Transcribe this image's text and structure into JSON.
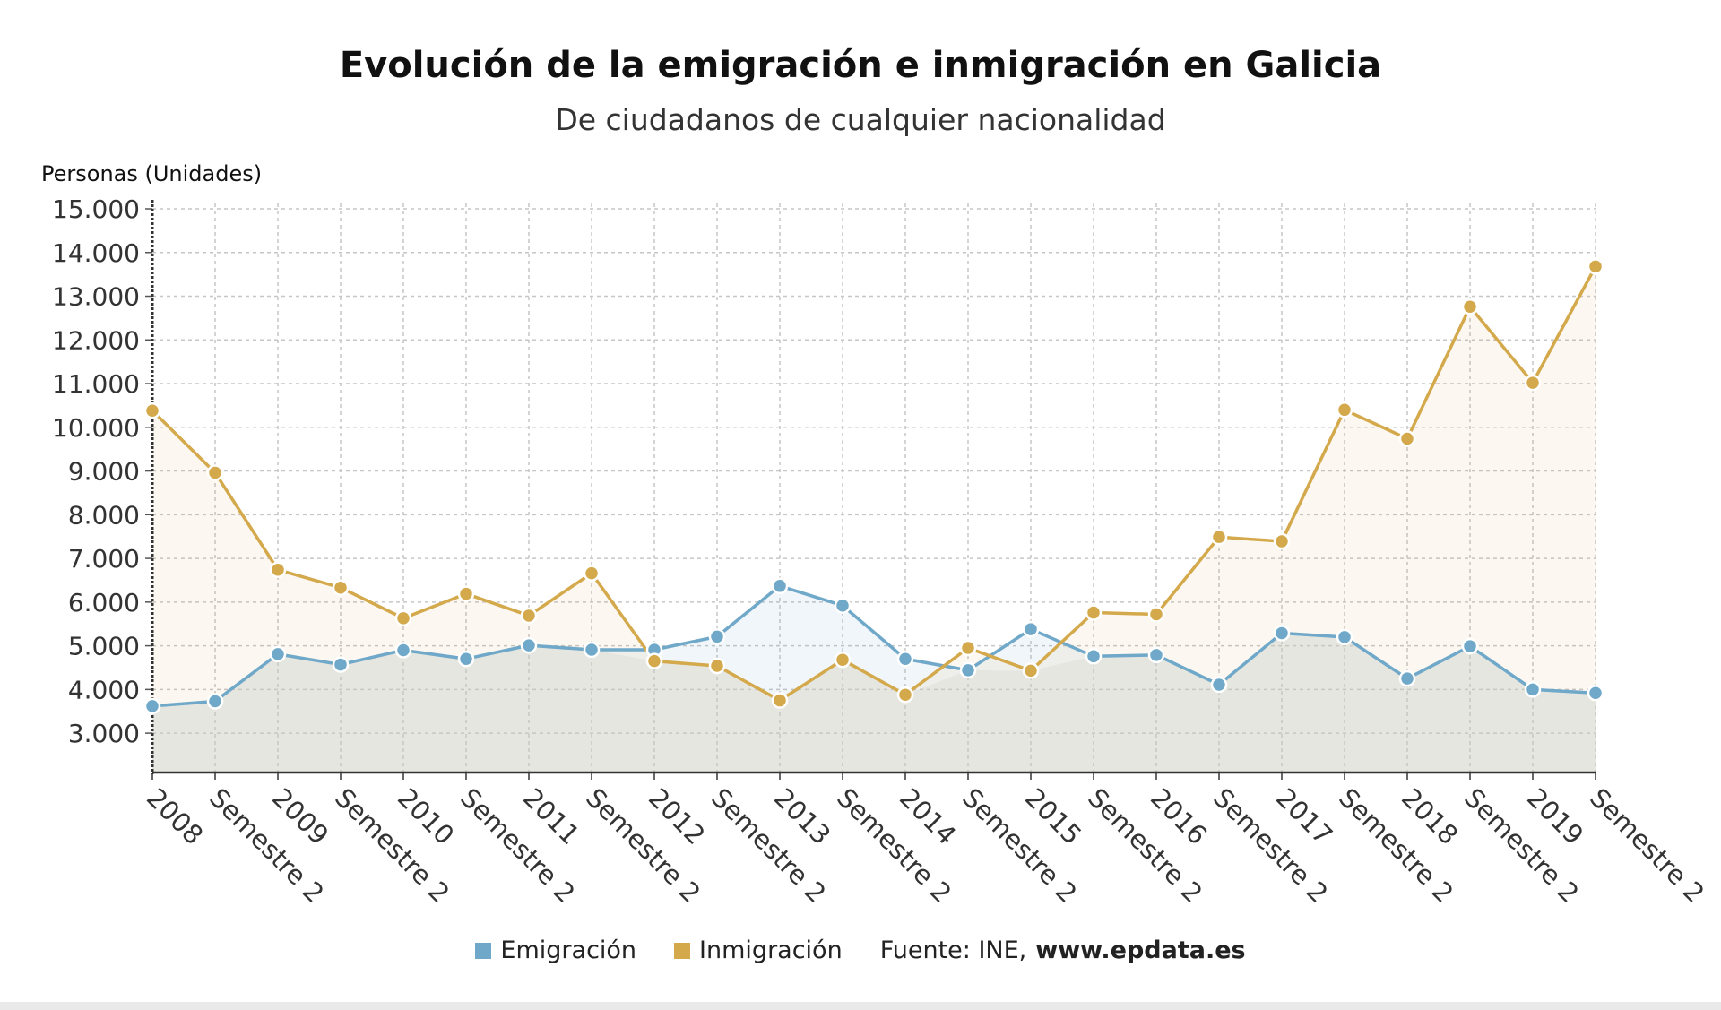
{
  "chart_data": {
    "type": "line",
    "title": "Evolución de la emigración e inmigración en Galicia",
    "subtitle": "De ciudadanos de cualquier nacionalidad",
    "ylabel": "Personas (Unidades)",
    "xlabel": "",
    "ylim": [
      2100,
      15000
    ],
    "yticks": [
      3000,
      4000,
      5000,
      6000,
      7000,
      8000,
      9000,
      10000,
      11000,
      12000,
      13000,
      14000,
      15000
    ],
    "ytick_labels": [
      "3.000",
      "4.000",
      "5.000",
      "6.000",
      "7.000",
      "8.000",
      "9.000",
      "10.000",
      "11.000",
      "12.000",
      "13.000",
      "14.000",
      "15.000"
    ],
    "grid": true,
    "legend_position": "bottom",
    "categories": [
      "2008",
      "Semestre 2",
      "2009",
      "Semestre 2",
      "2010",
      "Semestre 2",
      "2011",
      "Semestre 2",
      "2012",
      "Semestre 2",
      "2013",
      "Semestre 2",
      "2014",
      "Semestre 2",
      "2015",
      "Semestre 2",
      "2016",
      "Semestre 2",
      "2017",
      "Semestre 2",
      "2018",
      "Semestre 2",
      "2019",
      "Semestre 2"
    ],
    "series": [
      {
        "name": "Emigración",
        "color": "#6fa8c8",
        "values": [
          3620,
          3730,
          4810,
          4570,
          4900,
          4700,
          5010,
          4910,
          4910,
          5210,
          6370,
          5920,
          4700,
          4440,
          5380,
          4760,
          4790,
          4110,
          5290,
          5200,
          4250,
          4990,
          4000,
          3920
        ]
      },
      {
        "name": "Inmigración",
        "color": "#d4a94c",
        "values": [
          10380,
          8960,
          6740,
          6330,
          5630,
          6190,
          5690,
          6660,
          4650,
          4540,
          3750,
          4680,
          3880,
          4950,
          4430,
          5760,
          5720,
          7490,
          7390,
          10400,
          9740,
          12760,
          11020,
          13680
        ]
      }
    ]
  },
  "legend": {
    "source_label": "Fuente: INE,",
    "source_site": "www.epdata.es"
  }
}
